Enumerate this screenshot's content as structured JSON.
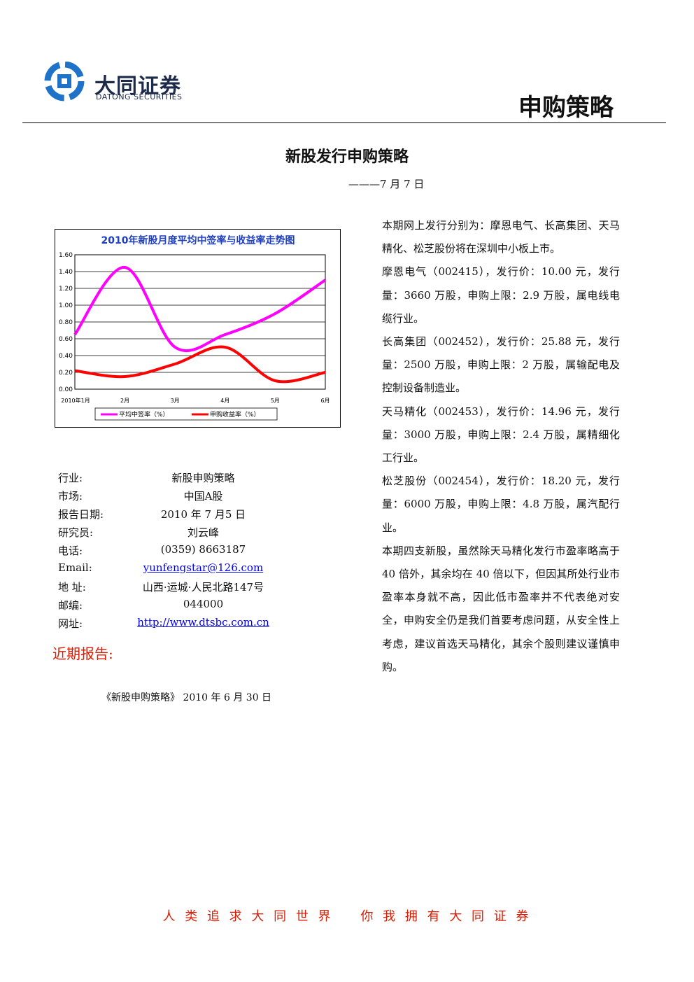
{
  "header": {
    "company": "大同证券",
    "company_en": "DATONG SECURITIES",
    "section": "申购策略"
  },
  "title": "新股发行申购策略",
  "date": "———7 月 7 日",
  "chart_data": {
    "type": "line",
    "title": "2010年新股月度平均中签率与收益率走势图",
    "categories": [
      "2010年1月",
      "2月",
      "3月",
      "4月",
      "5月",
      "6月"
    ],
    "series": [
      {
        "name": "平均中签率（%）",
        "color": "#ff00ff",
        "values": [
          0.65,
          1.45,
          0.5,
          0.65,
          0.9,
          1.3
        ]
      },
      {
        "name": "申购收益率（%）",
        "color": "#ff0000",
        "values": [
          0.22,
          0.15,
          0.3,
          0.5,
          0.1,
          0.2
        ]
      }
    ],
    "ylim": [
      0,
      1.6
    ],
    "yticks": [
      {
        "value": 0,
        "label": "0.00"
      },
      {
        "value": 0.2,
        "label": "0.20"
      },
      {
        "value": 0.4,
        "label": "0.40"
      },
      {
        "value": 0.6,
        "label": "0.60"
      },
      {
        "value": 0.8,
        "label": "0.80"
      },
      {
        "value": 1,
        "label": "1.00"
      },
      {
        "value": 1.2,
        "label": "1.20"
      },
      {
        "value": 1.4,
        "label": "1.40"
      },
      {
        "value": 1.6,
        "label": "1.60"
      }
    ],
    "grid": true,
    "legend": "bottom"
  },
  "info": [
    {
      "label": "行业:",
      "value": "新股申购策略"
    },
    {
      "label": "市场:",
      "value": "中国A股"
    },
    {
      "label": "报告日期:",
      "value": "2010 年 7 月5 日"
    },
    {
      "label": "研究员:",
      "value": "刘云峰"
    },
    {
      "label": "电话:",
      "value": "(0359) 8663187"
    },
    {
      "label": "Email:",
      "value": "yunfengstar@126.com"
    },
    {
      "label": "地 址:",
      "value": "山西·运城·人民北路147号"
    },
    {
      "label": "邮编:",
      "value": "044000"
    },
    {
      "label": "网址:",
      "value": "http://www.dtsbc.com.cn"
    }
  ],
  "recent_reports": {
    "heading": "近期报告:",
    "items": [
      "《新股申购策略》 2010 年 6 月 30 日"
    ]
  },
  "body": [
    "本期网上发行分别为：摩恩电气、长高集团、天马精化、松芝股份将在深圳中小板上市。",
    "摩恩电气（002415），发行价：10.00 元，发行量：3660 万股，申购上限：2.9 万股，属电线电缆行业。",
    "长高集团（002452），发行价：25.88 元，发行量：2500 万股，申购上限：2 万股，属输配电及控制设备制造业。",
    "天马精化（002453），发行价：14.96 元，发行量：3000 万股，申购上限：2.4 万股，属精细化工行业。",
    "松芝股份（002454），发行价：18.20 元，发行量：6000 万股，申购上限：4.8 万股，属汽配行业。",
    "本期四支新股，虽然除天马精化发行市盈率略高于 40 倍外，其余均在 40 倍以下，但因其所处行业市盈率本身就不高，因此低市盈率并不代表绝对安全，申购安全仍是我们首要考虑问题，从安全性上考虑，建议首选天马精化，其余个股则建议谨慎申购。"
  ],
  "footer": "人 类 追 求 大 同 世 界    你 我 拥 有 大 同 证 券"
}
